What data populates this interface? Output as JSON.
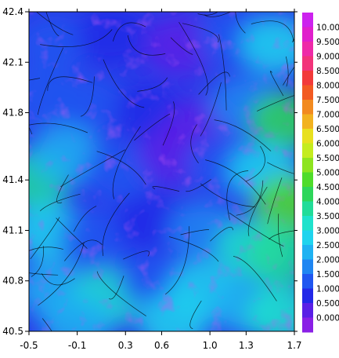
{
  "chart_data": {
    "type": "heatmap",
    "title": "",
    "xlabel": "",
    "ylabel": "",
    "x_ticks": [
      -0.5,
      -0.1,
      0.3,
      0.6,
      1.0,
      1.3,
      1.7
    ],
    "x_tick_labels": [
      "-0.5",
      "-0.1",
      "0.3",
      "0.6",
      "1.0",
      "1.3",
      "1.7"
    ],
    "y_ticks": [
      40.5,
      40.8,
      41.1,
      41.4,
      41.8,
      42.1,
      42.4
    ],
    "y_tick_labels": [
      "40.5",
      "40.8",
      "41.1",
      "41.4",
      "41.8",
      "42.1",
      "42.4"
    ],
    "xlim": [
      -0.5,
      1.7
    ],
    "ylim": [
      40.5,
      42.4
    ],
    "grid": false,
    "overlay": "streamlines",
    "colorbar": {
      "placement": "right",
      "levels": [
        {
          "label": "10.00",
          "color": "#cc22ee"
        },
        {
          "label": "9.500",
          "color": "#e01fcc"
        },
        {
          "label": "9.000",
          "color": "#ee2aa8"
        },
        {
          "label": "8.500",
          "color": "#f2337a"
        },
        {
          "label": "8.000",
          "color": "#f23a3a"
        },
        {
          "label": "7.500",
          "color": "#f25a22"
        },
        {
          "label": "7.000",
          "color": "#f28a1f"
        },
        {
          "label": "6.500",
          "color": "#f2b21f"
        },
        {
          "label": "6.000",
          "color": "#e8e01f"
        },
        {
          "label": "5.500",
          "color": "#c4ec1f"
        },
        {
          "label": "5.000",
          "color": "#8ee41f"
        },
        {
          "label": "4.500",
          "color": "#4fdc2a"
        },
        {
          "label": "4.000",
          "color": "#2ed65a"
        },
        {
          "label": "3.500",
          "color": "#22dc99"
        },
        {
          "label": "3.000",
          "color": "#1fe2cc"
        },
        {
          "label": "2.500",
          "color": "#1fd4ee"
        },
        {
          "label": "2.000",
          "color": "#1fb2f2"
        },
        {
          "label": "1.500",
          "color": "#1f86f2"
        },
        {
          "label": "1.000",
          "color": "#1f56f0"
        },
        {
          "label": "0.500",
          "color": "#2228e8"
        },
        {
          "label": "0.000",
          "color": "#5a1fe6"
        },
        {
          "label": "",
          "color": "#8a1fe6"
        }
      ]
    },
    "field_description_regions": [
      {
        "x": -0.3,
        "y": 42.2,
        "value": 1.0
      },
      {
        "x": 0.2,
        "y": 42.25,
        "value": 0.5
      },
      {
        "x": 0.75,
        "y": 42.2,
        "value": 0.0
      },
      {
        "x": 1.2,
        "y": 42.25,
        "value": 0.8
      },
      {
        "x": 1.55,
        "y": 42.2,
        "value": 2.5
      },
      {
        "x": -0.4,
        "y": 41.9,
        "value": 1.2
      },
      {
        "x": 0.0,
        "y": 41.85,
        "value": 0.8
      },
      {
        "x": 0.5,
        "y": 41.8,
        "value": 0.6
      },
      {
        "x": 0.9,
        "y": 41.7,
        "value": 0.0
      },
      {
        "x": 1.3,
        "y": 41.85,
        "value": 1.5
      },
      {
        "x": 1.62,
        "y": 41.75,
        "value": 4.0
      },
      {
        "x": -0.45,
        "y": 41.4,
        "value": 3.5
      },
      {
        "x": -0.2,
        "y": 41.55,
        "value": 2.0
      },
      {
        "x": 0.25,
        "y": 41.45,
        "value": 1.2
      },
      {
        "x": 0.7,
        "y": 41.55,
        "value": 0.2
      },
      {
        "x": 1.1,
        "y": 41.5,
        "value": 0.8
      },
      {
        "x": 1.45,
        "y": 41.45,
        "value": 2.5
      },
      {
        "x": 1.65,
        "y": 41.25,
        "value": 4.5
      },
      {
        "x": -0.35,
        "y": 41.1,
        "value": 2.5
      },
      {
        "x": 0.05,
        "y": 41.05,
        "value": 1.0
      },
      {
        "x": 0.5,
        "y": 41.15,
        "value": 0.5
      },
      {
        "x": 0.95,
        "y": 41.1,
        "value": 1.5
      },
      {
        "x": 1.35,
        "y": 41.0,
        "value": 2.8
      },
      {
        "x": 1.6,
        "y": 40.95,
        "value": 3.5
      },
      {
        "x": -0.3,
        "y": 40.75,
        "value": 2.2
      },
      {
        "x": 0.15,
        "y": 40.7,
        "value": 2.8
      },
      {
        "x": 0.55,
        "y": 40.8,
        "value": 1.2
      },
      {
        "x": 0.95,
        "y": 40.75,
        "value": 2.5
      },
      {
        "x": 1.3,
        "y": 40.65,
        "value": 2.0
      },
      {
        "x": 1.6,
        "y": 40.6,
        "value": 3.0
      },
      {
        "x": -0.1,
        "y": 40.55,
        "value": 2.0
      },
      {
        "x": 0.7,
        "y": 40.55,
        "value": 2.5
      }
    ]
  }
}
